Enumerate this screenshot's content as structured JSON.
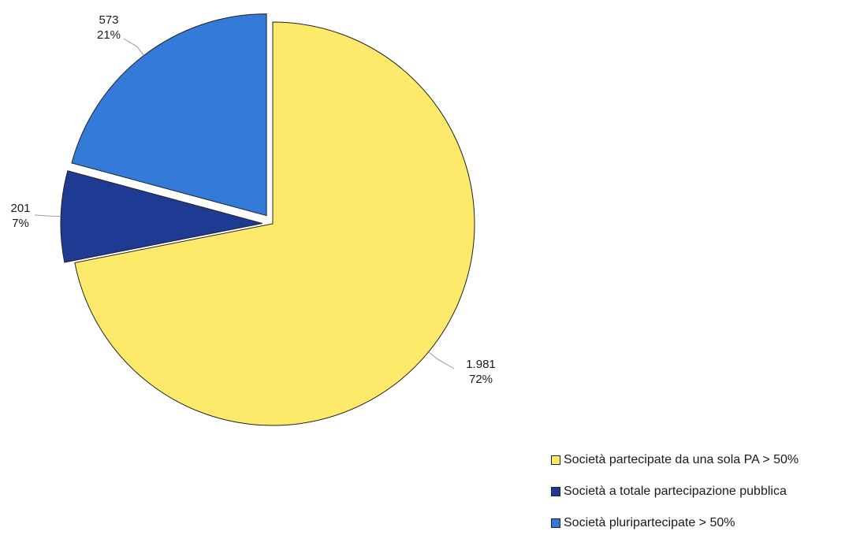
{
  "chart_data": {
    "type": "pie",
    "slices": [
      {
        "label": "Società partecipate da una sola PA > 50%",
        "value": 1981,
        "value_text": "1.981",
        "percent": 72,
        "percent_text": "72%",
        "color": "#FDE96A",
        "exploded": false
      },
      {
        "label": "Società a totale partecipazione pubblica",
        "value": 201,
        "value_text": "201",
        "percent": 7,
        "percent_text": "7%",
        "color": "#1F3A93",
        "exploded": true
      },
      {
        "label": "Società pluripartecipate > 50%",
        "value": 573,
        "value_text": "573",
        "percent": 21,
        "percent_text": "21%",
        "color": "#337AD9",
        "exploded": true
      }
    ],
    "start_angle": "12 o'clock",
    "direction": "clockwise",
    "legend_position": "bottom-right"
  }
}
